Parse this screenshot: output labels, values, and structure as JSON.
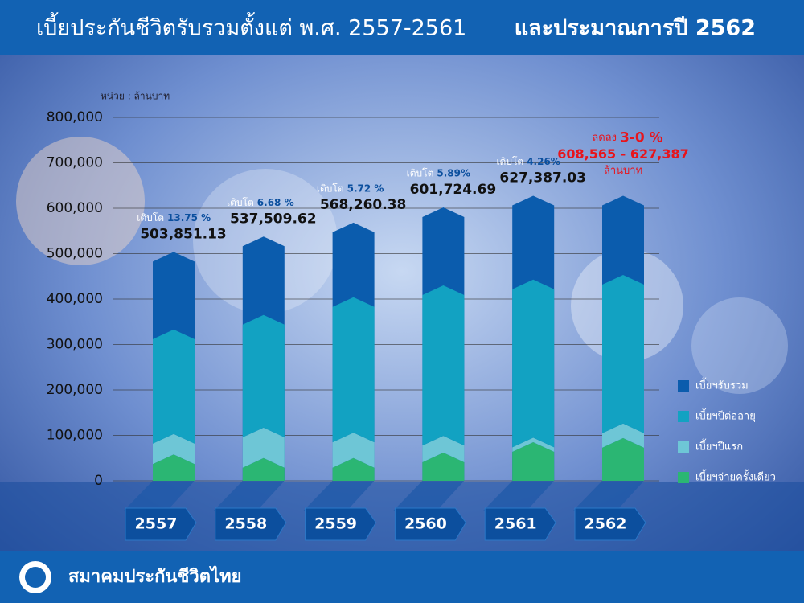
{
  "chart_data": {
    "type": "bar",
    "title": "เบี้ยประกันชีวิตรับรวมตั้งแต่ พ.ศ. 2557-2561",
    "title_bold": "และประมาณการปี 2562",
    "unit_label": "หน่วย : ล้านบาท",
    "categories": [
      "2557",
      "2558",
      "2559",
      "2560",
      "2561",
      "2562"
    ],
    "series": [
      {
        "name": "เบี้ยฯรับรวม",
        "color": "#0b5cad",
        "values": [
          503851.13,
          537509.62,
          568260.38,
          601724.69,
          627387.03,
          627387
        ],
        "value_labels": [
          "503,851.13",
          "537,509.62",
          "568,260.38",
          "601,724.69",
          "627,387.03",
          null
        ]
      },
      {
        "name": "เบี้ยฯปีต่ออายุ",
        "color": "#12a2c2",
        "values": [
          230000,
          248000,
          298000,
          331000,
          348000,
          327000
        ]
      },
      {
        "name": "เบี้ยฯปีแรก",
        "color": "#6ec6d6",
        "values": [
          45000,
          67000,
          56000,
          37000,
          10000,
          32000
        ]
      },
      {
        "name": "เบี้ยฯจ่ายครั้งเดียว",
        "color": "#2bb673",
        "values": [
          58000,
          50000,
          50000,
          62000,
          85000,
          94000
        ]
      }
    ],
    "growth_prefix": "เติบโต",
    "growth_labels": [
      "13.75 %",
      "6.68 %",
      "5.72 %",
      "5.89%",
      "4.26%",
      null
    ],
    "forecast": {
      "prefix": "ลดลง",
      "change": "3-0 %",
      "range": "608,565 - 627,387",
      "unit": "ล้านบาท"
    },
    "ylim": [
      0,
      800000
    ],
    "yticks": [
      0,
      {
        "value": 100000,
        "label": "100,000"
      },
      {
        "value": 200000,
        "label": "200,000"
      },
      {
        "value": 300000,
        "label": "300,000"
      },
      {
        "value": 400000,
        "label": "400,000"
      },
      {
        "value": 500000,
        "label": "500,000"
      },
      {
        "value": 600000,
        "label": "600,000"
      },
      {
        "value": 700000,
        "label": "700,000"
      },
      {
        "value": 800000,
        "label": "800,000"
      }
    ],
    "grid": true,
    "legend": "right",
    "footer": "สมาคมประกันชีวิตไทย"
  }
}
